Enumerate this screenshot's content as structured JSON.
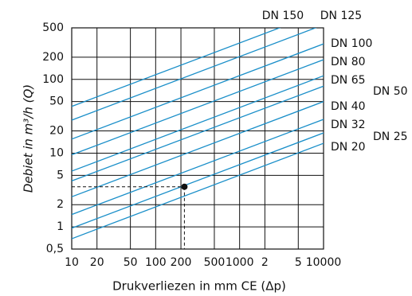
{
  "chart_data": {
    "type": "line",
    "x_label": "Drukverliezen in mm CE (Δp)",
    "y_label": "Debiet in m³/h (Q)",
    "log_x": true,
    "log_y": true,
    "grid": true,
    "xlim": [
      10,
      10000
    ],
    "ylim": [
      0.5,
      500
    ],
    "xticks": [
      10,
      20,
      50,
      100,
      200,
      500,
      1000,
      {
        "value": 2000,
        "label": "2"
      },
      {
        "value": 5000,
        "label": "5"
      },
      10000
    ],
    "yticks": [
      {
        "value": 0.5,
        "label": "0,5"
      },
      1,
      2,
      5,
      10,
      20,
      50,
      100,
      200,
      500
    ],
    "x": [
      10,
      10000
    ],
    "series": [
      {
        "name": "DN 20",
        "color": "#1a8fc9",
        "values": [
          0.69,
          13.6
        ]
      },
      {
        "name": "DN 25",
        "color": "#1a8fc9",
        "values": [
          0.96,
          18.8
        ]
      },
      {
        "name": "DN 32",
        "color": "#1a8fc9",
        "values": [
          1.47,
          28.7
        ]
      },
      {
        "name": "DN 40",
        "color": "#1a8fc9",
        "values": [
          2.56,
          50
        ]
      },
      {
        "name": "DN 50",
        "color": "#1a8fc9",
        "values": [
          4.2,
          81
        ]
      },
      {
        "name": "DN 65",
        "color": "#1a8fc9",
        "values": [
          5.7,
          112
        ]
      },
      {
        "name": "DN 80",
        "color": "#1a8fc9",
        "values": [
          9.5,
          185
        ]
      },
      {
        "name": "DN 100",
        "color": "#1a8fc9",
        "values": [
          15.5,
          303
        ]
      },
      {
        "name": "DN 125",
        "color": "#1a8fc9",
        "values": [
          28,
          550
        ]
      },
      {
        "name": "DN 150",
        "color": "#1a8fc9",
        "values": [
          43,
          840
        ]
      }
    ],
    "highlight": {
      "x": 220,
      "y": 3.5
    }
  }
}
